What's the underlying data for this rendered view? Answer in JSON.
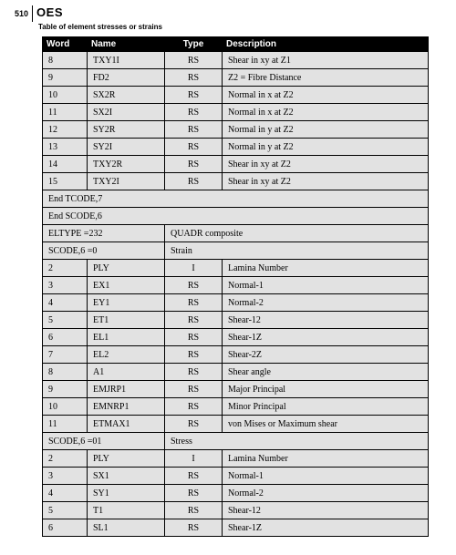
{
  "page_number": "510",
  "code": "OES",
  "subtitle": "Table of element stresses or strains",
  "columns": [
    "Word",
    "Name",
    "Type",
    "Description"
  ],
  "rows": [
    {
      "kind": "data",
      "word": "8",
      "name": "TXY1I",
      "type": "RS",
      "desc": "Shear in xy at Z1"
    },
    {
      "kind": "data",
      "word": "9",
      "name": "FD2",
      "type": "RS",
      "desc": "Z2 = Fibre Distance"
    },
    {
      "kind": "data",
      "word": "10",
      "name": "SX2R",
      "type": "RS",
      "desc": "Normal in x at Z2"
    },
    {
      "kind": "data",
      "word": "11",
      "name": "SX2I",
      "type": "RS",
      "desc": "Normal in x at Z2"
    },
    {
      "kind": "data",
      "word": "12",
      "name": "SY2R",
      "type": "RS",
      "desc": "Normal in y at Z2"
    },
    {
      "kind": "data",
      "word": "13",
      "name": "SY2I",
      "type": "RS",
      "desc": "Normal in y at Z2"
    },
    {
      "kind": "data",
      "word": "14",
      "name": "TXY2R",
      "type": "RS",
      "desc": "Shear in xy at Z2"
    },
    {
      "kind": "data",
      "word": "15",
      "name": "TXY2I",
      "type": "RS",
      "desc": "Shear in xy at Z2"
    },
    {
      "kind": "full",
      "text": "End TCODE,7"
    },
    {
      "kind": "full",
      "text": "End SCODE,6"
    },
    {
      "kind": "split",
      "left": "ELTYPE =232",
      "right": "QUADR composite"
    },
    {
      "kind": "split",
      "left": "SCODE,6 =0",
      "right": "Strain"
    },
    {
      "kind": "data",
      "word": "2",
      "name": "PLY",
      "type": "I",
      "desc": "Lamina Number"
    },
    {
      "kind": "data",
      "word": "3",
      "name": "EX1",
      "type": "RS",
      "desc": "Normal-1"
    },
    {
      "kind": "data",
      "word": "4",
      "name": "EY1",
      "type": "RS",
      "desc": "Normal-2"
    },
    {
      "kind": "data",
      "word": "5",
      "name": "ET1",
      "type": "RS",
      "desc": "Shear-12"
    },
    {
      "kind": "data",
      "word": "6",
      "name": "EL1",
      "type": "RS",
      "desc": "Shear-1Z"
    },
    {
      "kind": "data",
      "word": "7",
      "name": "EL2",
      "type": "RS",
      "desc": "Shear-2Z"
    },
    {
      "kind": "data",
      "word": "8",
      "name": "A1",
      "type": "RS",
      "desc": "Shear angle"
    },
    {
      "kind": "data",
      "word": "9",
      "name": "EMJRP1",
      "type": "RS",
      "desc": "Major Principal"
    },
    {
      "kind": "data",
      "word": "10",
      "name": "EMNRP1",
      "type": "RS",
      "desc": "Minor Principal"
    },
    {
      "kind": "data",
      "word": "11",
      "name": "ETMAX1",
      "type": "RS",
      "desc": "von Mises or Maximum shear"
    },
    {
      "kind": "split",
      "left": "SCODE,6 =01",
      "right": "Stress"
    },
    {
      "kind": "data",
      "word": "2",
      "name": "PLY",
      "type": "I",
      "desc": "Lamina Number"
    },
    {
      "kind": "data",
      "word": "3",
      "name": "SX1",
      "type": "RS",
      "desc": "Normal-1"
    },
    {
      "kind": "data",
      "word": "4",
      "name": "SY1",
      "type": "RS",
      "desc": "Normal-2"
    },
    {
      "kind": "data",
      "word": "5",
      "name": "T1",
      "type": "RS",
      "desc": "Shear-12"
    },
    {
      "kind": "data",
      "word": "6",
      "name": "SL1",
      "type": "RS",
      "desc": "Shear-1Z"
    }
  ]
}
